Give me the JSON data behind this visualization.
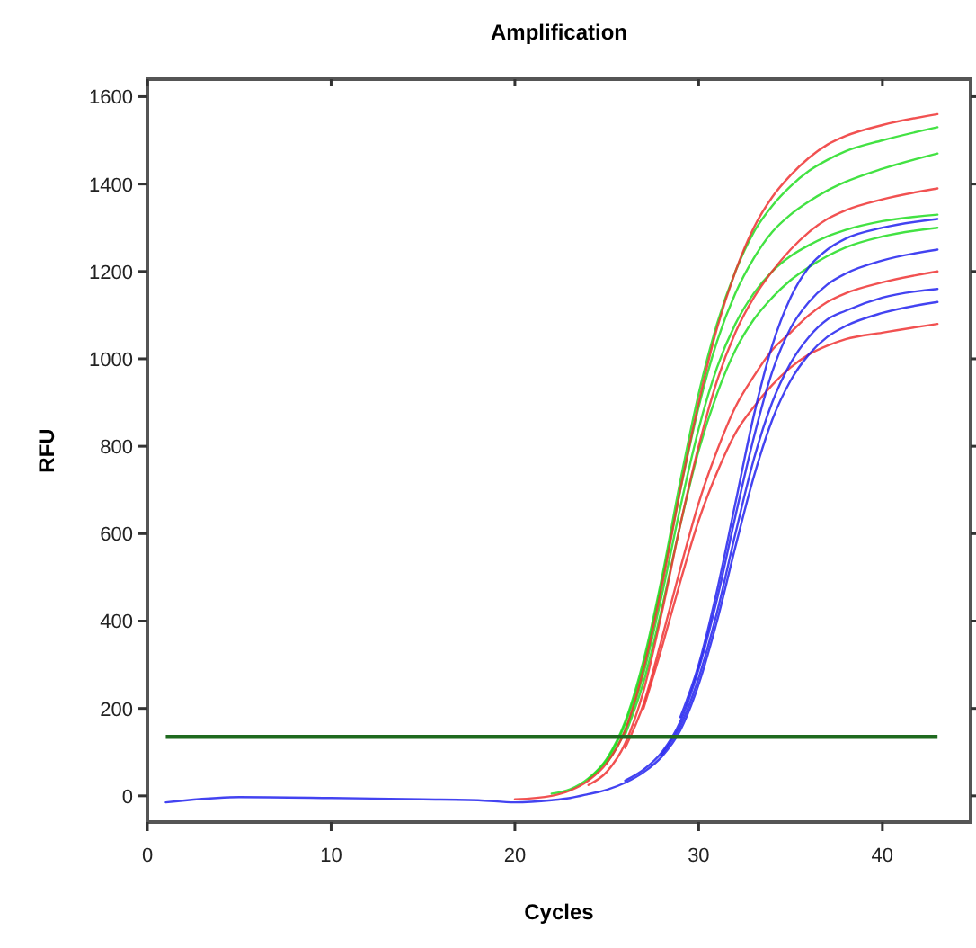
{
  "chart_data": {
    "type": "line",
    "title": "Amplification",
    "xlabel": "Cycles",
    "ylabel": "RFU",
    "x": [
      1,
      5,
      10,
      15,
      18,
      20,
      22,
      23,
      24,
      25,
      26,
      27,
      28,
      29,
      30,
      31,
      32,
      33,
      34,
      35,
      36,
      37,
      38,
      40,
      43
    ],
    "xlim": [
      0,
      44.8
    ],
    "xticks": [
      0,
      10,
      20,
      30,
      40
    ],
    "ylim": [
      -60,
      1640
    ],
    "yticks": [
      0,
      200,
      400,
      600,
      800,
      1000,
      1200,
      1400,
      1600
    ],
    "grid": false,
    "marker": "none",
    "line_style": "solid",
    "ref_lines": [
      {
        "axis": "y",
        "value": 135,
        "color": "#1f6a1f"
      }
    ],
    "series": [
      {
        "color": "#22dd22",
        "values": [
          null,
          null,
          null,
          null,
          null,
          null,
          5,
          15,
          40,
          85,
          170,
          310,
          500,
          720,
          920,
          1080,
          1200,
          1290,
          1350,
          1395,
          1430,
          1455,
          1475,
          1500,
          1530
        ]
      },
      {
        "color": "#22dd22",
        "values": [
          null,
          null,
          null,
          null,
          null,
          null,
          null,
          null,
          38,
          82,
          165,
          300,
          490,
          700,
          890,
          1040,
          1150,
          1230,
          1290,
          1330,
          1360,
          1385,
          1405,
          1435,
          1470
        ]
      },
      {
        "color": "#22dd22",
        "values": [
          null,
          null,
          null,
          null,
          null,
          null,
          null,
          null,
          null,
          75,
          150,
          280,
          460,
          660,
          840,
          980,
          1080,
          1150,
          1200,
          1235,
          1260,
          1280,
          1295,
          1315,
          1330
        ]
      },
      {
        "color": "#22dd22",
        "values": [
          null,
          null,
          null,
          null,
          null,
          null,
          null,
          null,
          null,
          null,
          140,
          260,
          430,
          620,
          790,
          920,
          1020,
          1090,
          1140,
          1180,
          1210,
          1235,
          1255,
          1280,
          1300
        ]
      },
      {
        "color": "#ee3333",
        "values": [
          null,
          null,
          null,
          null,
          null,
          -8,
          0,
          12,
          35,
          75,
          150,
          290,
          480,
          700,
          900,
          1070,
          1200,
          1300,
          1370,
          1420,
          1460,
          1490,
          1510,
          1535,
          1560
        ]
      },
      {
        "color": "#ee3333",
        "values": [
          null,
          null,
          null,
          null,
          null,
          null,
          null,
          null,
          25,
          55,
          120,
          240,
          420,
          620,
          800,
          950,
          1060,
          1140,
          1200,
          1250,
          1290,
          1320,
          1340,
          1365,
          1390
        ]
      },
      {
        "color": "#ee3333",
        "values": [
          null,
          null,
          null,
          null,
          null,
          null,
          null,
          null,
          null,
          null,
          110,
          210,
          360,
          520,
          670,
          790,
          890,
          960,
          1020,
          1060,
          1100,
          1130,
          1150,
          1175,
          1200
        ]
      },
      {
        "color": "#ee3333",
        "values": [
          null,
          null,
          null,
          null,
          null,
          null,
          null,
          null,
          null,
          null,
          null,
          200,
          340,
          490,
          630,
          740,
          830,
          890,
          940,
          980,
          1010,
          1030,
          1045,
          1060,
          1080
        ]
      },
      {
        "color": "#2222ee",
        "values": [
          null,
          null,
          null,
          null,
          null,
          null,
          null,
          null,
          null,
          null,
          35,
          60,
          100,
          170,
          290,
          450,
          640,
          820,
          970,
          1070,
          1130,
          1170,
          1195,
          1225,
          1250
        ]
      },
      {
        "color": "#2222ee",
        "values": [
          null,
          null,
          null,
          null,
          null,
          null,
          null,
          null,
          null,
          null,
          null,
          null,
          95,
          160,
          270,
          420,
          600,
          770,
          900,
          990,
          1050,
          1090,
          1110,
          1140,
          1160
        ]
      },
      {
        "color": "#2222ee",
        "values": [
          null,
          null,
          null,
          null,
          null,
          null,
          null,
          null,
          null,
          null,
          null,
          null,
          null,
          180,
          300,
          470,
          670,
          870,
          1030,
          1140,
          1210,
          1250,
          1275,
          1300,
          1320
        ]
      },
      {
        "color": "#2222ee",
        "values": [
          -15,
          -3,
          -5,
          -8,
          -10,
          -15,
          -10,
          -5,
          4,
          14,
          30,
          54,
          90,
          150,
          255,
          400,
          570,
          730,
          860,
          950,
          1010,
          1050,
          1075,
          1105,
          1130
        ]
      }
    ]
  }
}
